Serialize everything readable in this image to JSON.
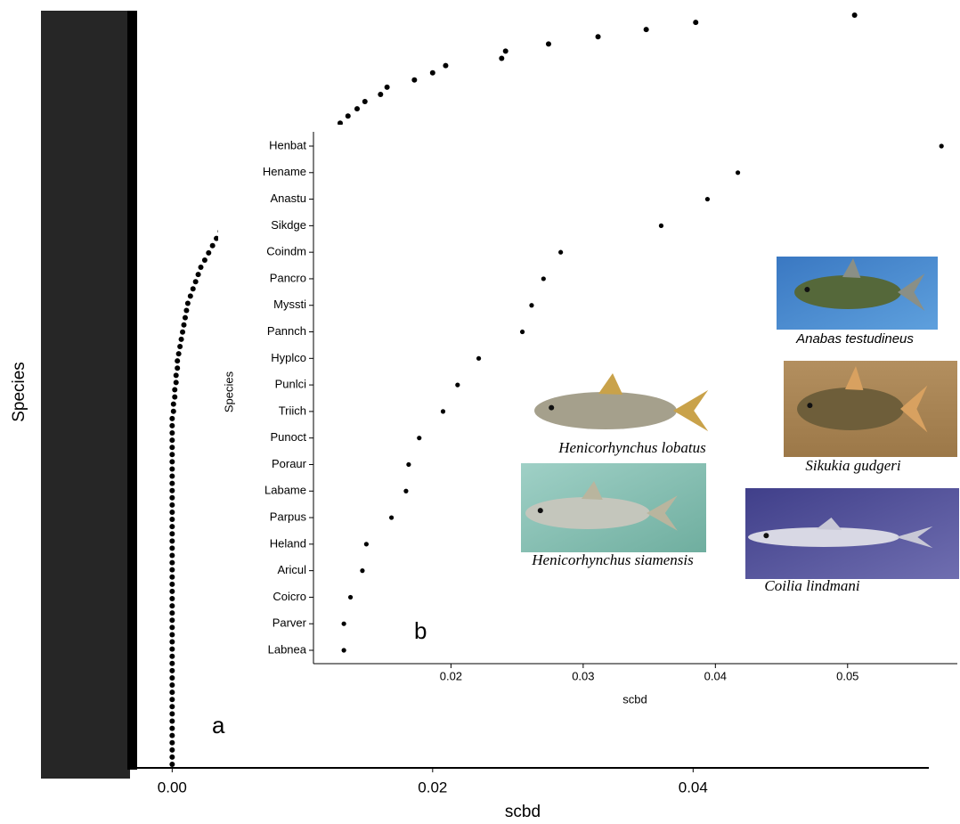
{
  "chart_data": [
    {
      "type": "dotplot",
      "panel_label": "a",
      "x_label": "scbd",
      "y_label": "Species",
      "values": [
        0.0524,
        0.0402,
        0.0364,
        0.0327,
        0.0289,
        0.0256,
        0.0253,
        0.021,
        0.02,
        0.0186,
        0.0165,
        0.016,
        0.0148,
        0.0142,
        0.0135,
        0.0129,
        0.0124,
        0.0117,
        0.0105,
        0.0095,
        0.0087,
        0.008,
        0.0074,
        0.0068,
        0.0063,
        0.0058,
        0.0053,
        0.0049,
        0.0045,
        0.0041,
        0.0037,
        0.0034,
        0.0031,
        0.0028,
        0.0025,
        0.0022,
        0.002,
        0.0018,
        0.0016,
        0.0014,
        0.0012,
        0.0011,
        0.001,
        0.0009,
        0.0008,
        0.0007,
        0.0006,
        0.0005,
        0.0004,
        0.0004,
        0.0003,
        0.0003,
        0.0002,
        0.0002,
        0.0001,
        0.0001,
        0,
        0,
        0,
        0,
        0,
        0,
        0,
        0,
        0,
        0,
        0,
        0,
        0,
        0,
        0,
        0,
        0,
        0,
        0,
        0,
        0,
        0,
        0,
        0,
        0,
        0,
        0,
        0,
        0,
        0,
        0,
        0,
        0,
        0,
        0,
        0,
        0,
        0,
        0,
        0,
        0,
        0,
        0,
        0,
        0,
        0,
        0,
        0,
        0
      ],
      "color": "#000000",
      "xlim": [
        -0.0031,
        0.0581
      ],
      "xticks": [
        {
          "value": 0,
          "label": "0.00"
        },
        0.02,
        0.04
      ]
    },
    {
      "type": "dotplot",
      "panel_label": "b",
      "x_label": "scbd",
      "y_label": "Species",
      "categories": [
        "Henbat",
        "Hename",
        "Anastu",
        "Sikdge",
        "Coindm",
        "Pancro",
        "Myssti",
        "Pannch",
        "Hyplco",
        "Punlci",
        "Triich",
        "Punoct",
        "Poraur",
        "Labame",
        "Parpus",
        "Heland",
        "Aricul",
        "Coicro",
        "Parver",
        "Labnea"
      ],
      "values": [
        0.0571,
        0.0417,
        0.0394,
        0.0359,
        0.0283,
        0.027,
        0.0261,
        0.0254,
        0.0221,
        0.0205,
        0.0194,
        0.0176,
        0.0168,
        0.0166,
        0.0155,
        0.0136,
        0.0133,
        0.0124,
        0.0119,
        0.0119
      ],
      "color": "#000000",
      "xlim": [
        0.0096,
        0.0583
      ],
      "xticks": [
        0.02,
        0.03,
        0.04,
        0.05
      ],
      "annotations": [
        "Anabas testudineus",
        "Henicorhynchus lobatus",
        "Sikukia gudgeri",
        "Henicorhynchus siamensis",
        "Coilia lindmani"
      ]
    }
  ]
}
